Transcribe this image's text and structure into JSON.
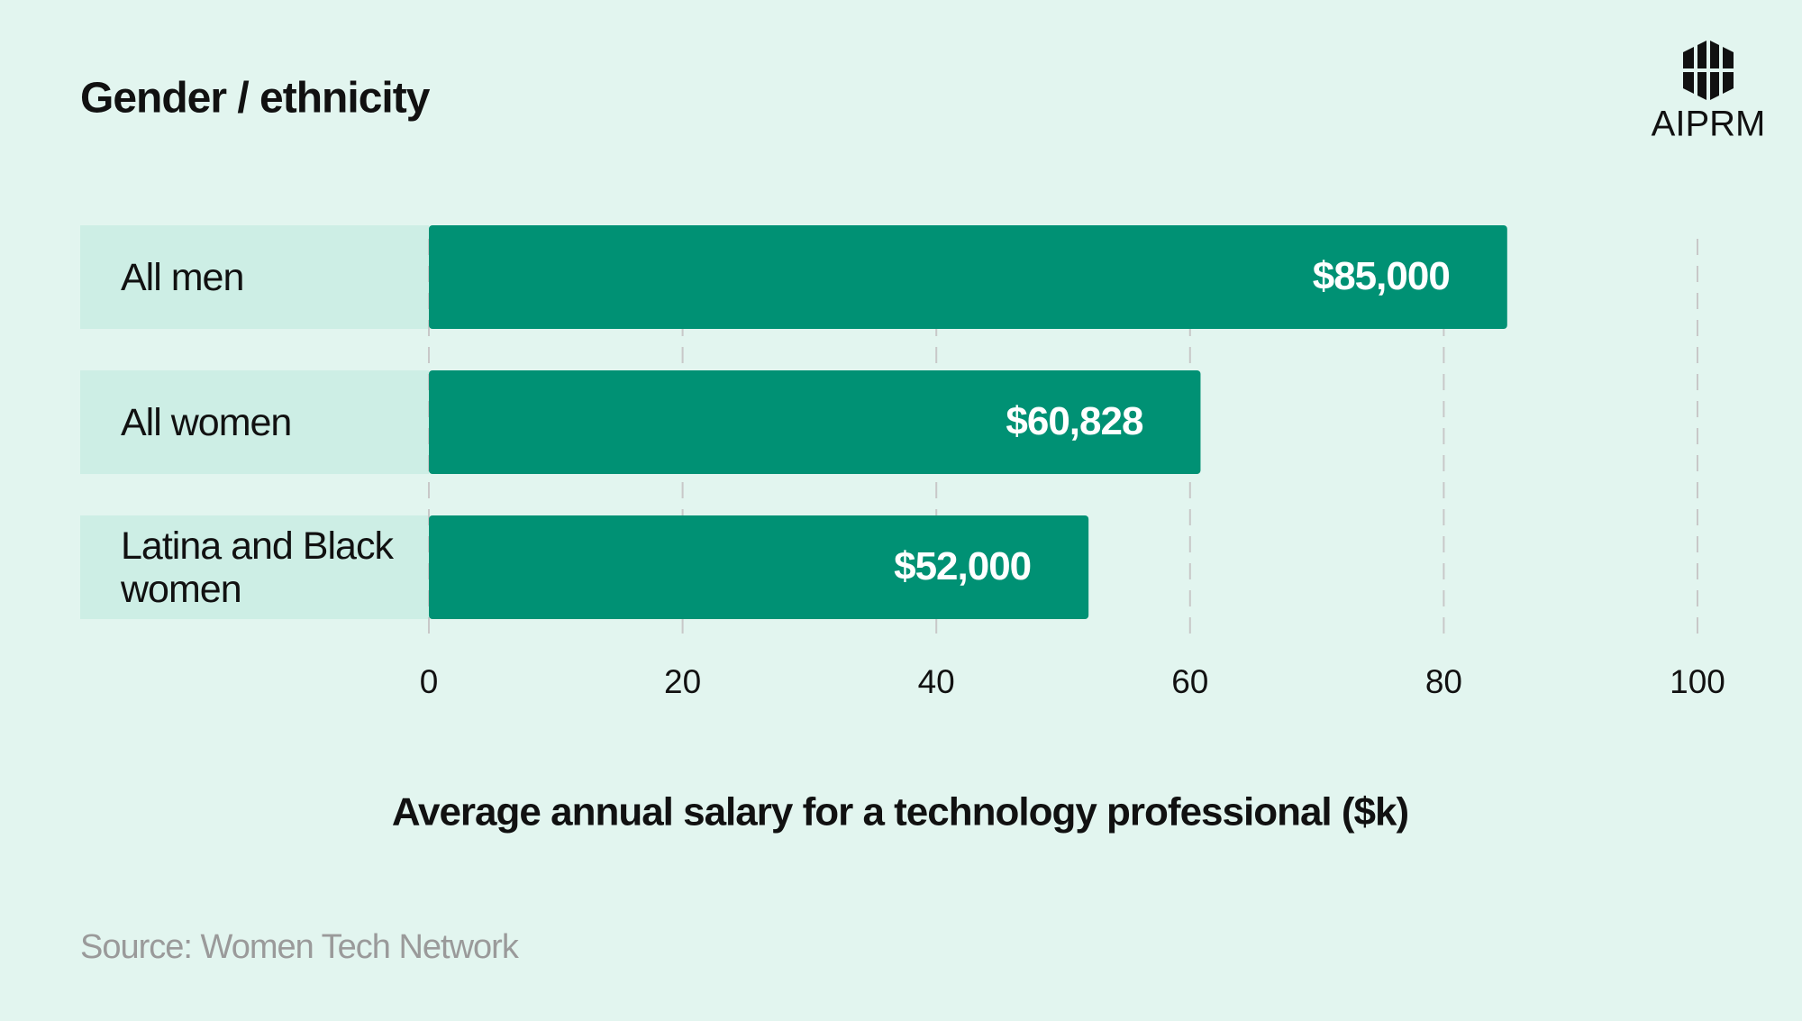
{
  "chart_data": {
    "type": "hbar",
    "title": "Gender / ethnicity",
    "logo": "AIPRM",
    "categories": [
      "All men",
      "All women",
      "Latina and Black women"
    ],
    "values": [
      85,
      60.828,
      52
    ],
    "value_labels": [
      "$85,000",
      "$60,828",
      "$52,000"
    ],
    "color": "#009174",
    "xlim": [
      0,
      100
    ],
    "xticks": [
      0,
      20,
      40,
      60,
      80,
      100
    ],
    "grid": true,
    "xlabel": "Average annual salary for a technology professional ($k)",
    "source": "Source: Women Tech Network"
  }
}
